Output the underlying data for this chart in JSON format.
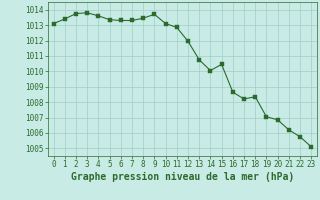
{
  "x": [
    0,
    1,
    2,
    3,
    4,
    5,
    6,
    7,
    8,
    9,
    10,
    11,
    12,
    13,
    14,
    15,
    16,
    17,
    18,
    19,
    20,
    21,
    22,
    23
  ],
  "y": [
    1013.1,
    1013.4,
    1013.75,
    1013.8,
    1013.6,
    1013.35,
    1013.3,
    1013.3,
    1013.45,
    1013.7,
    1013.1,
    1012.85,
    1011.95,
    1010.75,
    1010.05,
    1010.45,
    1008.65,
    1008.2,
    1008.35,
    1007.05,
    1006.85,
    1006.2,
    1005.75,
    1005.1
  ],
  "line_color": "#2d6a2d",
  "marker_color": "#2d6a2d",
  "bg_color": "#c8ebe6",
  "grid_color": "#a0cfc8",
  "ylim": [
    1004.5,
    1014.5
  ],
  "ytick_min": 1005,
  "ytick_max": 1014,
  "xticks": [
    0,
    1,
    2,
    3,
    4,
    5,
    6,
    7,
    8,
    9,
    10,
    11,
    12,
    13,
    14,
    15,
    16,
    17,
    18,
    19,
    20,
    21,
    22,
    23
  ],
  "xlabel": "Graphe pression niveau de la mer (hPa)",
  "xlabel_color": "#2d6a2d",
  "tick_fontsize": 5.5,
  "label_fontsize": 7.0,
  "tick_color": "#2d6a2d",
  "axis_color": "#2d6a2d",
  "marker_size": 2.5,
  "line_width": 0.8
}
